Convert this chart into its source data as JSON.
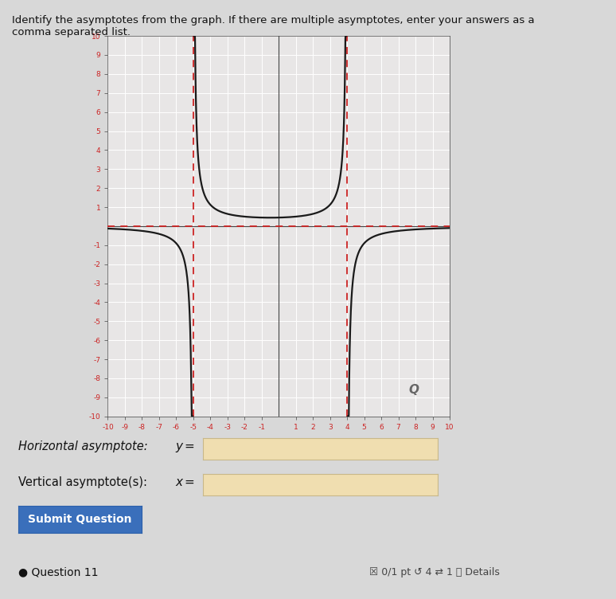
{
  "title_line1": "Identify the asymptotes from the graph. If there are multiple asymptotes, enter your answers as a",
  "title_line2": "comma separated list.",
  "xlim": [
    -10,
    10
  ],
  "ylim": [
    -10,
    10
  ],
  "xticks": [
    -10,
    -9,
    -8,
    -7,
    -6,
    -5,
    -4,
    -3,
    -2,
    -1,
    1,
    2,
    3,
    4,
    5,
    6,
    7,
    8,
    9,
    10
  ],
  "yticks": [
    -10,
    -9,
    -8,
    -7,
    -6,
    -5,
    -4,
    -3,
    -2,
    -1,
    1,
    2,
    3,
    4,
    5,
    6,
    7,
    8,
    9,
    10
  ],
  "vertical_asymptotes": [
    -5,
    4
  ],
  "horizontal_asymptote": 0,
  "asymptote_color": "#cc2222",
  "curve_color": "#1a1a1a",
  "bg_color": "#d8d8d8",
  "plot_bg_color": "#e8e6e6",
  "grid_color": "#ffffff",
  "axis_color": "#444444",
  "tick_label_color": "#cc2222",
  "scale": 9,
  "input_label_1": "Horizontal asymptote:",
  "input_label_2": "Vertical asymptote(s):",
  "input_box_color": "#f0deb0",
  "button_label": "Submit Question",
  "button_color": "#3a6fbb",
  "footer_text": "Question 11",
  "footer_right": "☒ 0/1 pt ↺ 4 ⇄ 1 ⓘ Details"
}
